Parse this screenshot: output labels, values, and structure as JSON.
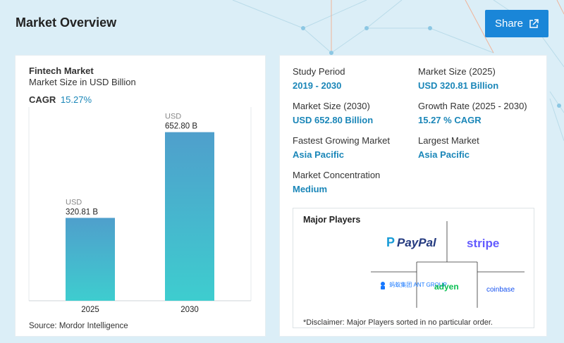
{
  "header": {
    "title": "Market Overview",
    "share_label": "Share",
    "share_icon": "external-link-icon"
  },
  "chart_card": {
    "title": "Fintech Market",
    "subtitle": "Market Size in USD Billion",
    "cagr_label": "CAGR",
    "cagr_value": "15.27%",
    "source": "Source: Mordor Intelligence"
  },
  "chart_data": {
    "type": "bar",
    "categories": [
      "2025",
      "2030"
    ],
    "values": [
      320.81,
      652.8
    ],
    "value_labels": [
      {
        "unit": "USD",
        "text": "320.81 B"
      },
      {
        "unit": "USD",
        "text": "652.80 B"
      }
    ],
    "title": "Fintech Market",
    "subtitle": "Market Size in USD Billion",
    "xlabel": "",
    "ylabel": "",
    "ylim": [
      0,
      750
    ],
    "grid": false,
    "colors": {
      "bar_top": "#4f9fcc",
      "bar_bottom": "#3ecdcf"
    }
  },
  "stats": [
    {
      "label": "Study Period",
      "value": "2019 - 2030"
    },
    {
      "label": "Market Size (2025)",
      "value": "USD 320.81 Billion"
    },
    {
      "label": "Market Size (2030)",
      "value": "USD 652.80 Billion"
    },
    {
      "label": "Growth Rate (2025 - 2030)",
      "value": "15.27 % CAGR"
    },
    {
      "label": "Fastest Growing Market",
      "value": "Asia Pacific"
    },
    {
      "label": "Largest Market",
      "value": "Asia Pacific"
    },
    {
      "label": "Market Concentration",
      "value": "Medium"
    }
  ],
  "players": {
    "title": "Major Players",
    "logos": {
      "paypal": "PayPal",
      "stripe": "stripe",
      "ant": "蚂蚁集团 ANT GROUP",
      "adyen": "adyen",
      "coinbase": "coinbase"
    },
    "disclaimer": "*Disclaimer: Major Players sorted in no particular order."
  },
  "colors": {
    "accent": "#1a86b8",
    "button": "#1a86d8",
    "background": "#dbeef7"
  }
}
